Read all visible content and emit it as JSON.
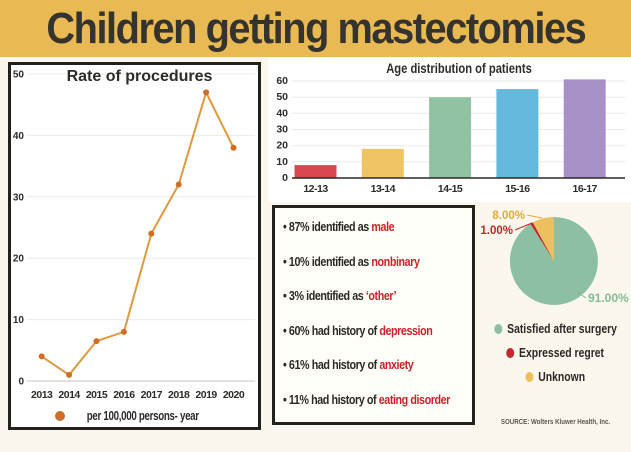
{
  "header": {
    "title": "Children getting mastectomies"
  },
  "colors": {
    "band": "#e9b953",
    "page_bg": "#fbf7ec",
    "panel_border": "#23211d",
    "highlight_red": "#cb2328",
    "dark_text": "#2e2c28"
  },
  "chart_data": [
    {
      "type": "line",
      "title": "Rate of procedures",
      "legend": "per 100,000 persons- year",
      "x": [
        "2013",
        "2014",
        "2015",
        "2016",
        "2017",
        "2018",
        "2019",
        "2020"
      ],
      "values": [
        4,
        1,
        6.5,
        8,
        24,
        32,
        47,
        38
      ],
      "yticks": [
        0,
        10,
        20,
        30,
        40,
        50
      ],
      "ylim": [
        0,
        50
      ],
      "grid": true,
      "line_color": "#e09a3d",
      "dot_color": "#d06e28"
    },
    {
      "type": "bar",
      "title": "Age distribution of patients",
      "categories": [
        "12-13",
        "13-14",
        "14-15",
        "15-16",
        "16-17"
      ],
      "values": [
        8,
        18,
        50,
        55,
        61
      ],
      "colors": [
        "#d7494f",
        "#f0c464",
        "#92c2a4",
        "#64b9dc",
        "#a890c9"
      ],
      "yticks": [
        0,
        10,
        20,
        30,
        40,
        50,
        60
      ],
      "ylim": [
        0,
        63
      ],
      "grid": true
    },
    {
      "type": "pie",
      "legend_position": "below",
      "slices": [
        {
          "label": "Satisfied after surgery",
          "value": 91,
          "display": "91.00%",
          "color": "#8dbfa2",
          "label_color": "#85b897"
        },
        {
          "label": "Expressed regret",
          "value": 1,
          "display": "1.00%",
          "color": "#c1272d",
          "label_color": "#c1272d"
        },
        {
          "label": "Unknown",
          "value": 8,
          "display": "8.00%",
          "color": "#ecc05e",
          "label_color": "#dfa945"
        }
      ]
    }
  ],
  "stats": {
    "bullet": "•",
    "items": [
      {
        "text": "87% identified as ",
        "highlight": "male"
      },
      {
        "text": "10% identified as ",
        "highlight": "nonbinary"
      },
      {
        "text": "3% identified as ",
        "highlight": "‘other’"
      },
      {
        "text": "60% had history of ",
        "highlight": "depression"
      },
      {
        "text": "61% had history of ",
        "highlight": "anxiety"
      },
      {
        "text": "11% had history of ",
        "highlight": "eating disorder"
      }
    ]
  },
  "source": {
    "label": "SOURCE: Wolters Kluwer Health, Inc."
  }
}
